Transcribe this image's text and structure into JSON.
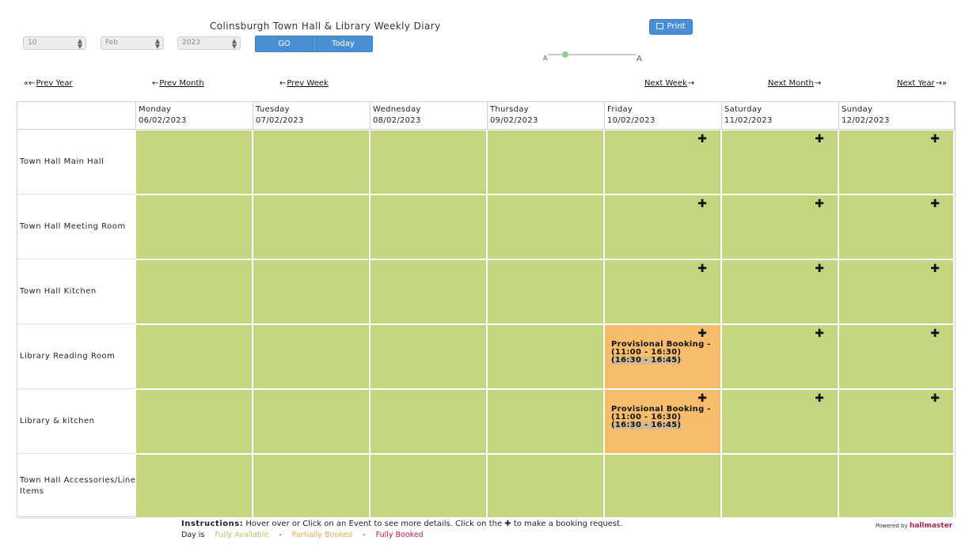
{
  "title": "Colinsburgh Town Hall & Library Weekly Diary",
  "controls": {
    "day": "10",
    "month": "Feb",
    "year": "2023",
    "go_label": "GO",
    "today_label": "Today",
    "print_label": "Print",
    "zoom_small": "A",
    "zoom_large": "A",
    "zoom_level": 0.2
  },
  "nav": {
    "prev_year": "Prev Year",
    "prev_month": "Prev Month",
    "prev_week": "Prev Week",
    "next_week": "Next Week",
    "next_month": "Next Month",
    "next_year": "Next Year"
  },
  "days": [
    {
      "name": "Monday",
      "date": "06/02/2023"
    },
    {
      "name": "Tuesday",
      "date": "07/02/2023"
    },
    {
      "name": "Wednesday",
      "date": "08/02/2023"
    },
    {
      "name": "Thursday",
      "date": "09/02/2023"
    },
    {
      "name": "Friday",
      "date": "10/02/2023"
    },
    {
      "name": "Saturday",
      "date": "11/02/2023"
    },
    {
      "name": "Sunday",
      "date": "12/02/2023"
    }
  ],
  "rooms": [
    "Town Hall Main Hall",
    "Town Hall Meeting Room",
    "Town Hall Kitchen",
    "Library Reading Room",
    "Library & kitchen",
    "Town Hall Accessories/Line Items"
  ],
  "booking": {
    "title": "Provisional Booking -",
    "time1": "(11:00 - 16:30)",
    "time2": "(16:30 - 16:45)"
  },
  "plus_symbol": "✚",
  "instructions": {
    "label": "Instructions:",
    "text_before": "Hover over or Click on an Event to see more details. Click on the",
    "text_after": "to make a booking request."
  },
  "legend": {
    "day_is": "Day is",
    "fully_available": "Fully Available",
    "partially_booked": "Partially Booked",
    "fully_booked": "Fully Booked",
    "sep": "-"
  },
  "powered": {
    "label": "Powered by",
    "brand": "hallmaster"
  },
  "colors": {
    "available": "#c3d57f",
    "partial": "#f7bd6b",
    "fully_booked": "#c0185a",
    "available_text": "#b3c55f",
    "partial_text": "#f0a84a",
    "button": "#4a8fd4"
  }
}
